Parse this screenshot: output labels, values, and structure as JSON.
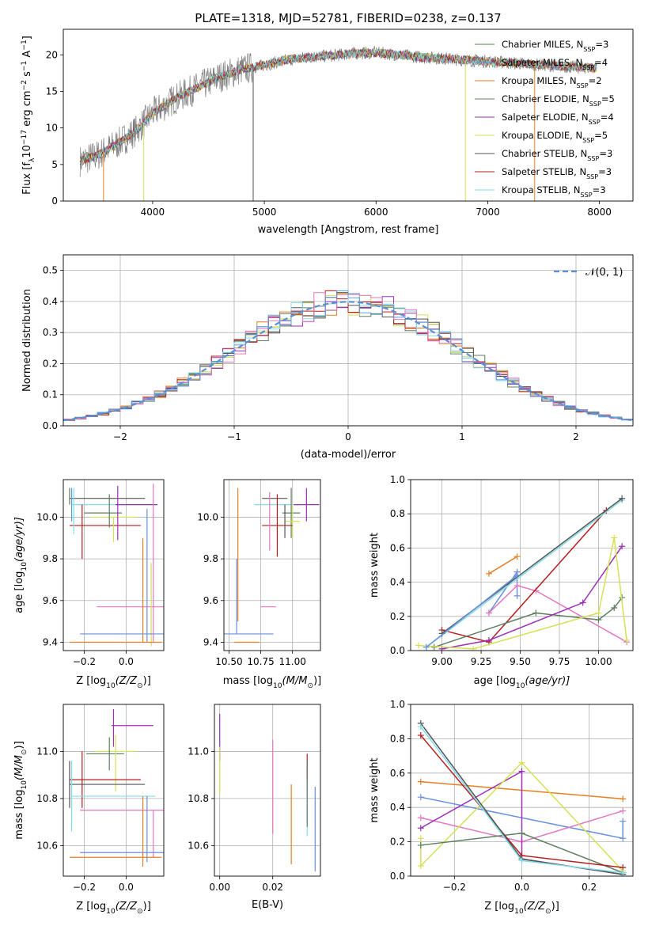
{
  "figure": {
    "title": "PLATE=1318, MJD=52781, FIBERID=0238, z=0.137"
  },
  "colors": {
    "Chabrier MILES": "#5b9bd5",
    "Salpeter MILES": "#8e44ad",
    "Kroupa MILES": "#e67e22",
    "Chabrier ELODIE": "#5d7f5d",
    "Salpeter ELODIE": "#9b30b5",
    "Kroupa ELODIE": "#d4e157",
    "Chabrier STELIB": "#555555",
    "Salpeter STELIB": "#b71c1c",
    "Kroupa STELIB": "#80deea",
    "gaussian": "#5b8fd6",
    "pink": "#e377c2",
    "blue": "#6a8fe0"
  },
  "chart_data": [
    {
      "id": "spectrum",
      "type": "line",
      "xlabel": "wavelength [Angstrom, rest frame]",
      "ylabel_prefix": "Flux [f",
      "ylabel_mid": "10",
      "ylabel_sup1": "−17",
      "ylabel_tail": " erg cm",
      "ylabel_sup2": "−2",
      "ylabel_tail2": " s",
      "ylabel_sup3": "−1",
      "ylabel_tail3": " A",
      "ylabel_sup4": "−1",
      "ylabel_end": "]",
      "xlim": [
        3200,
        8300
      ],
      "ylim": [
        0,
        23.5
      ],
      "xticks": [
        4000,
        5000,
        6000,
        7000,
        8000
      ],
      "yticks": [
        0,
        5,
        10,
        15,
        20
      ],
      "legend_position": "top-right",
      "legend": [
        {
          "name": "Chabrier MILES, N",
          "sub": "SSP",
          "eq": "=3",
          "color": "#5d7f5d"
        },
        {
          "name": "Salpeter MILES, N",
          "sub": "SSP",
          "eq": "=4",
          "color": "#5b9bd5"
        },
        {
          "name": "Kroupa MILES, N",
          "sub": "SSP",
          "eq": "=2",
          "color": "#e67e22"
        },
        {
          "name": "Chabrier ELODIE, N",
          "sub": "SSP",
          "eq": "=5",
          "color": "#5d7f5d"
        },
        {
          "name": "Salpeter ELODIE, N",
          "sub": "SSP",
          "eq": "=4",
          "color": "#9b30b5"
        },
        {
          "name": "Kroupa ELODIE, N",
          "sub": "SSP",
          "eq": "=5",
          "color": "#d4e157"
        },
        {
          "name": "Chabrier STELIB, N",
          "sub": "SSP",
          "eq": "=3",
          "color": "#555555"
        },
        {
          "name": "Salpeter STELIB, N",
          "sub": "SSP",
          "eq": "=3",
          "color": "#b71c1c"
        },
        {
          "name": "Kroupa STELIB, N",
          "sub": "SSP",
          "eq": "=3",
          "color": "#80deea"
        }
      ],
      "continuum": [
        [
          3350,
          5.5
        ],
        [
          3500,
          6.2
        ],
        [
          3700,
          8.0
        ],
        [
          3850,
          9.6
        ],
        [
          4000,
          12.0
        ],
        [
          4200,
          14.0
        ],
        [
          4400,
          15.5
        ],
        [
          4600,
          17.0
        ],
        [
          4800,
          18.0
        ],
        [
          5000,
          18.6
        ],
        [
          5200,
          19.3
        ],
        [
          5400,
          19.7
        ],
        [
          5600,
          19.9
        ],
        [
          5800,
          20.2
        ],
        [
          6000,
          20.3
        ],
        [
          6200,
          20.0
        ],
        [
          6400,
          19.7
        ],
        [
          6600,
          19.5
        ],
        [
          6800,
          19.3
        ],
        [
          7000,
          19.1
        ],
        [
          7200,
          18.9
        ],
        [
          7400,
          18.7
        ],
        [
          7600,
          18.5
        ],
        [
          7800,
          18.3
        ],
        [
          7980,
          18.2
        ]
      ]
    },
    {
      "id": "residuals",
      "type": "line",
      "xlabel": "(data-model)/error",
      "ylabel": "Normed distribution",
      "xlim": [
        -2.5,
        2.5
      ],
      "ylim": [
        0,
        0.55
      ],
      "xticks": [
        -2,
        -1,
        0,
        1,
        2
      ],
      "yticks": [
        0.0,
        0.1,
        0.2,
        0.3,
        0.4,
        0.5
      ],
      "grid": true,
      "legend_position": "top-right",
      "legend_label": "𝒩(0, 1)"
    },
    {
      "id": "age-vs-Z",
      "type": "scatter",
      "xlabel_prefix": "Z [log",
      "xlabel_sub": "10",
      "xlabel_tail": "(Z/Z",
      "xlabel_sub2": "⊙",
      "xlabel_end": ")]",
      "ylabel_prefix": "age  [log",
      "ylabel_sub": "10",
      "ylabel_tail": "(age/yr)]",
      "xlim": [
        -0.3,
        0.18
      ],
      "ylim": [
        9.36,
        10.18
      ],
      "xticks": [
        -0.2,
        0.0
      ],
      "yticks": [
        9.4,
        9.6,
        9.8,
        10.0
      ],
      "grid": true,
      "points": [
        {
          "x": -0.09,
          "xerr": 0.18,
          "y": 10.09,
          "yerr": 0.0,
          "color": "#555555"
        },
        {
          "x": -0.06,
          "xerr": 0.2,
          "y": 10.06,
          "yerr": 0.0,
          "color": "#80deea"
        },
        {
          "x": 0.05,
          "xerr": 0.1,
          "y": 10.06,
          "yerr": 0.0,
          "color": "#9b30b5"
        },
        {
          "x": -0.11,
          "xerr": 0.09,
          "y": 10.02,
          "yerr": 0.0,
          "color": "#5d7f5d"
        },
        {
          "x": -0.06,
          "xerr": 0.11,
          "y": 10.0,
          "yerr": 0.0,
          "color": "#d4e157"
        },
        {
          "x": -0.1,
          "xerr": 0.17,
          "y": 9.96,
          "yerr": 0.0,
          "color": "#b71c1c"
        },
        {
          "x": -0.25,
          "xerr": 0.0,
          "y": 10.03,
          "yerr": 0.11,
          "color": "#80deea"
        },
        {
          "x": -0.26,
          "xerr": 0.0,
          "y": 10.06,
          "yerr": 0.08,
          "color": "#5b9bd5"
        },
        {
          "x": -0.27,
          "xerr": 0.0,
          "y": 10.1,
          "yerr": 0.04,
          "color": "#5d7f5d"
        },
        {
          "x": -0.21,
          "xerr": 0.0,
          "y": 9.93,
          "yerr": 0.13,
          "color": "#b71c1c"
        },
        {
          "x": -0.04,
          "xerr": 0.0,
          "y": 10.02,
          "yerr": 0.13,
          "color": "#9b30b5"
        },
        {
          "x": -0.08,
          "xerr": 0.0,
          "y": 10.03,
          "yerr": 0.08,
          "color": "#5d7f5d"
        },
        {
          "x": -0.06,
          "xerr": 0.0,
          "y": 9.94,
          "yerr": 0.06,
          "color": "#d4e157"
        },
        {
          "x": 0.06,
          "xerr": 0.2,
          "y": 9.57,
          "yerr": 0.0,
          "color": "#e377c2"
        },
        {
          "x": 0.08,
          "xerr": 0.0,
          "y": 9.65,
          "yerr": 0.25,
          "color": "#e67e22"
        },
        {
          "x": 0.1,
          "xerr": 0.0,
          "y": 9.72,
          "yerr": 0.32,
          "color": "#6a8fe0"
        },
        {
          "x": 0.13,
          "xerr": 0.0,
          "y": 9.78,
          "yerr": 0.38,
          "color": "#e377c2"
        },
        {
          "x": 0.12,
          "xerr": 0.0,
          "y": 9.58,
          "yerr": 0.2,
          "color": "#d4e157"
        },
        {
          "x": -0.02,
          "xerr": 0.2,
          "y": 9.44,
          "yerr": 0.0,
          "color": "#6a8fe0"
        },
        {
          "x": -0.05,
          "xerr": 0.22,
          "y": 9.4,
          "yerr": 0.0,
          "color": "#e67e22"
        }
      ]
    },
    {
      "id": "age-vs-mass",
      "type": "scatter",
      "xlabel_prefix": "mass [log",
      "xlabel_sub": "10",
      "xlabel_tail": "(M/M",
      "xlabel_sub2": "⊙",
      "xlabel_end": ")]",
      "xlim": [
        10.46,
        11.22
      ],
      "ylim": [
        9.36,
        10.18
      ],
      "xticks": [
        10.5,
        10.75,
        11.0
      ],
      "xtick_labels": [
        "10.50",
        "10.75",
        "11.00"
      ],
      "yticks": [
        9.4,
        9.6,
        9.8,
        10.0
      ],
      "grid": true,
      "points": [
        {
          "x": 10.86,
          "xerr": 0.1,
          "y": 10.09,
          "yerr": 0.0,
          "color": "#555555"
        },
        {
          "x": 10.88,
          "xerr": 0.18,
          "y": 10.06,
          "yerr": 0.0,
          "color": "#80deea"
        },
        {
          "x": 11.11,
          "xerr": 0.1,
          "y": 10.06,
          "yerr": 0.08,
          "color": "#9b30b5"
        },
        {
          "x": 10.99,
          "xerr": 0.07,
          "y": 10.02,
          "yerr": 0.12,
          "color": "#5d7f5d"
        },
        {
          "x": 11.0,
          "xerr": 0.06,
          "y": 9.98,
          "yerr": 0.08,
          "color": "#d4e157"
        },
        {
          "x": 10.88,
          "xerr": 0.12,
          "y": 9.96,
          "yerr": 0.15,
          "color": "#b71c1c"
        },
        {
          "x": 10.94,
          "xerr": 0.0,
          "y": 9.98,
          "yerr": 0.08,
          "color": "#555555"
        },
        {
          "x": 10.82,
          "xerr": 0.0,
          "y": 9.98,
          "yerr": 0.14,
          "color": "#e377c2"
        },
        {
          "x": 10.57,
          "xerr": 0.0,
          "y": 9.82,
          "yerr": 0.32,
          "color": "#e67e22"
        },
        {
          "x": 10.56,
          "xerr": 0.0,
          "y": 9.62,
          "yerr": 0.18,
          "color": "#6a8fe0"
        },
        {
          "x": 10.81,
          "xerr": 0.06,
          "y": 9.57,
          "yerr": 0.0,
          "color": "#e377c2"
        },
        {
          "x": 10.65,
          "xerr": 0.2,
          "y": 9.44,
          "yerr": 0.0,
          "color": "#6a8fe0"
        },
        {
          "x": 10.64,
          "xerr": 0.1,
          "y": 9.4,
          "yerr": 0.0,
          "color": "#e67e22"
        }
      ]
    },
    {
      "id": "weight-vs-age",
      "type": "line",
      "xlabel_prefix": "age  [log",
      "xlabel_sub": "10",
      "xlabel_tail": "(age/yr)]",
      "ylabel": "mass weight",
      "xlim": [
        8.8,
        10.22
      ],
      "ylim": [
        0,
        1.0
      ],
      "xticks": [
        9.0,
        9.25,
        9.5,
        9.75,
        10.0
      ],
      "xtick_labels": [
        "9.00",
        "9.25",
        "9.50",
        "9.75",
        "10.00"
      ],
      "yticks": [
        0.0,
        0.2,
        0.4,
        0.6,
        0.8,
        1.0
      ],
      "grid": true,
      "series": [
        {
          "color": "#e67e22",
          "x": [
            9.3,
            9.48
          ],
          "y": [
            0.45,
            0.55
          ]
        },
        {
          "color": "#6a8fe0",
          "x": [
            9.3,
            9.48,
            9.48
          ],
          "y": [
            0.22,
            0.46,
            0.32
          ]
        },
        {
          "color": "#e377c2",
          "x": [
            9.3,
            9.48,
            9.6,
            10.18
          ],
          "y": [
            0.22,
            0.38,
            0.35,
            0.05
          ]
        },
        {
          "color": "#b71c1c",
          "x": [
            9.0,
            9.3,
            10.05
          ],
          "y": [
            0.12,
            0.05,
            0.82
          ]
        },
        {
          "color": "#80deea",
          "x": [
            8.9,
            10.15
          ],
          "y": [
            0.02,
            0.88
          ]
        },
        {
          "color": "#555555",
          "x": [
            9.0,
            10.15
          ],
          "y": [
            0.1,
            0.89
          ]
        },
        {
          "color": "#5d7f5d",
          "x": [
            8.95,
            9.6,
            10.0,
            10.1,
            10.15
          ],
          "y": [
            0.02,
            0.22,
            0.18,
            0.25,
            0.31
          ]
        },
        {
          "color": "#9b30b5",
          "x": [
            9.0,
            9.3,
            9.9,
            10.15
          ],
          "y": [
            0.01,
            0.06,
            0.28,
            0.61
          ]
        },
        {
          "color": "#d4e157",
          "x": [
            8.85,
            9.2,
            10.0,
            10.1,
            10.18
          ],
          "y": [
            0.03,
            0.01,
            0.22,
            0.66,
            0.06
          ]
        },
        {
          "color": "#6a8fe0",
          "x": [
            8.9,
            9.48
          ],
          "y": [
            0.02,
            0.44
          ]
        }
      ]
    },
    {
      "id": "mass-vs-Z",
      "type": "scatter",
      "xlabel_prefix": "Z [log",
      "xlabel_sub": "10",
      "xlabel_tail": "(Z/Z",
      "xlabel_sub2": "⊙",
      "xlabel_end": ")]",
      "ylabel_prefix": "mass [log",
      "ylabel_sub": "10",
      "ylabel_tail": "(M/M",
      "ylabel_sub2": "⊙",
      "ylabel_end": ")]",
      "xlim": [
        -0.3,
        0.18
      ],
      "ylim": [
        10.47,
        11.2
      ],
      "xticks": [
        -0.2,
        0.0
      ],
      "yticks": [
        10.6,
        10.8,
        11.0
      ],
      "grid": true,
      "points": [
        {
          "x": 0.03,
          "xerr": 0.1,
          "y": 11.11,
          "yerr": 0.0,
          "color": "#9b30b5"
        },
        {
          "x": -0.06,
          "xerr": 0.0,
          "y": 11.1,
          "yerr": 0.08,
          "color": "#9b30b5"
        },
        {
          "x": -0.1,
          "xerr": 0.09,
          "y": 10.99,
          "yerr": 0.0,
          "color": "#5d7f5d"
        },
        {
          "x": -0.05,
          "xerr": 0.1,
          "y": 11.0,
          "yerr": 0.0,
          "color": "#d4e157"
        },
        {
          "x": -0.08,
          "xerr": 0.0,
          "y": 10.99,
          "yerr": 0.07,
          "color": "#5d7f5d"
        },
        {
          "x": -0.05,
          "xerr": 0.0,
          "y": 10.95,
          "yerr": 0.12,
          "color": "#d4e157"
        },
        {
          "x": -0.1,
          "xerr": 0.17,
          "y": 10.88,
          "yerr": 0.0,
          "color": "#b71c1c"
        },
        {
          "x": -0.09,
          "xerr": 0.18,
          "y": 10.86,
          "yerr": 0.0,
          "color": "#555555"
        },
        {
          "x": -0.27,
          "xerr": 0.0,
          "y": 10.86,
          "yerr": 0.1,
          "color": "#555555"
        },
        {
          "x": -0.21,
          "xerr": 0.0,
          "y": 10.88,
          "yerr": 0.12,
          "color": "#b71c1c"
        },
        {
          "x": -0.26,
          "xerr": 0.0,
          "y": 10.81,
          "yerr": 0.15,
          "color": "#80deea"
        },
        {
          "x": -0.06,
          "xerr": 0.2,
          "y": 10.81,
          "yerr": 0.0,
          "color": "#80deea"
        },
        {
          "x": -0.02,
          "xerr": 0.2,
          "y": 10.75,
          "yerr": 0.0,
          "color": "#e377c2"
        },
        {
          "x": 0.08,
          "xerr": 0.0,
          "y": 10.66,
          "yerr": 0.15,
          "color": "#e67e22"
        },
        {
          "x": 0.1,
          "xerr": 0.0,
          "y": 10.67,
          "yerr": 0.14,
          "color": "#6a8fe0"
        },
        {
          "x": 0.13,
          "xerr": 0.0,
          "y": 10.65,
          "yerr": 0.1,
          "color": "#e377c2"
        },
        {
          "x": -0.02,
          "xerr": 0.2,
          "y": 10.57,
          "yerr": 0.0,
          "color": "#6a8fe0"
        },
        {
          "x": -0.05,
          "xerr": 0.22,
          "y": 10.55,
          "yerr": 0.0,
          "color": "#e67e22"
        }
      ]
    },
    {
      "id": "mass-vs-EBV",
      "type": "scatter",
      "xlabel": "E(B-V)",
      "xlim": [
        -0.002,
        0.038
      ],
      "ylim": [
        10.47,
        11.2
      ],
      "xticks": [
        0.0,
        0.02
      ],
      "xtick_labels": [
        "0.00",
        "0.02"
      ],
      "yticks": [
        10.6,
        10.8,
        11.0
      ],
      "grid": true,
      "points": [
        {
          "x": 0.0,
          "y": 11.06,
          "yerr": 0.1,
          "color": "#9b30b5"
        },
        {
          "x": 0.0,
          "y": 10.92,
          "yerr": 0.1,
          "color": "#d4e157"
        },
        {
          "x": 0.02,
          "y": 10.85,
          "yerr": 0.2,
          "color": "#e377c2"
        },
        {
          "x": 0.027,
          "y": 10.69,
          "yerr": 0.17,
          "color": "#e67e22"
        },
        {
          "x": 0.033,
          "y": 10.91,
          "yerr": 0.08,
          "color": "#b71c1c"
        },
        {
          "x": 0.033,
          "y": 10.76,
          "yerr": 0.12,
          "color": "#80deea"
        },
        {
          "x": 0.033,
          "y": 10.82,
          "yerr": 0.14,
          "color": "#5d7f5d"
        },
        {
          "x": 0.036,
          "y": 10.67,
          "yerr": 0.18,
          "color": "#6a8fe0"
        }
      ]
    },
    {
      "id": "weight-vs-Z",
      "type": "line",
      "xlabel_prefix": "Z [log",
      "xlabel_sub": "10",
      "xlabel_tail": "(Z/Z",
      "xlabel_sub2": "⊙",
      "xlabel_end": ")]",
      "ylabel": "mass weight",
      "xlim": [
        -0.33,
        0.33
      ],
      "ylim": [
        0,
        1.0
      ],
      "xticks": [
        -0.2,
        0.0,
        0.2
      ],
      "yticks": [
        0.0,
        0.2,
        0.4,
        0.6,
        0.8,
        1.0
      ],
      "grid": true,
      "series": [
        {
          "color": "#e67e22",
          "x": [
            -0.3,
            0.3
          ],
          "y": [
            0.55,
            0.45
          ]
        },
        {
          "color": "#6a8fe0",
          "x": [
            -0.3,
            0.3,
            0.3
          ],
          "y": [
            0.46,
            0.22,
            0.32
          ]
        },
        {
          "color": "#e377c2",
          "x": [
            -0.3,
            0.0,
            0.3
          ],
          "y": [
            0.34,
            0.2,
            0.38
          ]
        },
        {
          "color": "#9b30b5",
          "x": [
            -0.3,
            0.0,
            0.0,
            0.3
          ],
          "y": [
            0.28,
            0.61,
            0.1,
            0.01
          ]
        },
        {
          "color": "#d4e157",
          "x": [
            -0.3,
            -0.3,
            0.0,
            0.3
          ],
          "y": [
            0.22,
            0.06,
            0.66,
            0.03
          ]
        },
        {
          "color": "#5d7f5d",
          "x": [
            -0.3,
            0.0,
            0.3
          ],
          "y": [
            0.18,
            0.25,
            0.02
          ]
        },
        {
          "color": "#b71c1c",
          "x": [
            -0.3,
            0.0,
            0.3
          ],
          "y": [
            0.82,
            0.12,
            0.05
          ]
        },
        {
          "color": "#555555",
          "x": [
            -0.3,
            0.0,
            0.3
          ],
          "y": [
            0.89,
            0.1,
            0.01
          ]
        },
        {
          "color": "#80deea",
          "x": [
            -0.3,
            0.0,
            0.3
          ],
          "y": [
            0.87,
            0.09,
            0.02
          ]
        }
      ]
    }
  ]
}
